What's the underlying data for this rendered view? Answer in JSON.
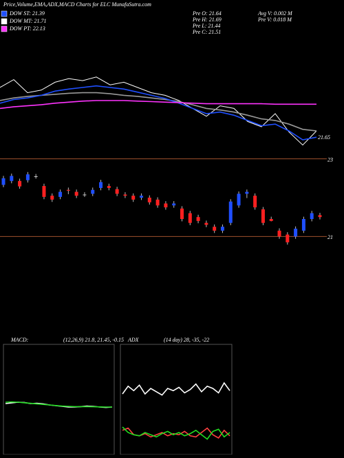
{
  "chart_data": [
    {
      "type": "line",
      "title": "Price,Volume,EMA,ADX,MACD Charts for ELC MunafaSutra.com",
      "legend": [
        {
          "label": "DOW ST: 21.39",
          "color": "#1f4fff"
        },
        {
          "label": "DOW MT: 21.71",
          "color": "#ffffff"
        },
        {
          "label": "DOW PT: 22.13",
          "color": "#ff33ff"
        }
      ],
      "info": [
        "Pre O: 21.64",
        "Pre H: 21.69",
        "Pre L: 21.44",
        "Pre C: 21.51",
        "Avg V: 0.002 M",
        "Pre V: 0.018 M"
      ],
      "annotation": "21.65",
      "ylim": [
        21.2,
        23.2
      ],
      "series": [
        {
          "color": "#ffffff",
          "values": [
            22.45,
            22.6,
            22.35,
            22.4,
            22.55,
            22.62,
            22.58,
            22.65,
            22.5,
            22.55,
            22.45,
            22.35,
            22.3,
            22.2,
            22.05,
            21.9,
            22.1,
            22.05,
            21.8,
            21.7,
            21.95,
            21.6,
            21.35,
            21.62
          ]
        },
        {
          "color": "#999999",
          "values": [
            22.2,
            22.25,
            22.28,
            22.3,
            22.32,
            22.34,
            22.35,
            22.35,
            22.33,
            22.3,
            22.28,
            22.25,
            22.22,
            22.18,
            22.12,
            22.05,
            22.02,
            21.98,
            21.92,
            21.85,
            21.82,
            21.75,
            21.65,
            21.62
          ]
        },
        {
          "color": "#1f4fff",
          "values": [
            22.15,
            22.22,
            22.25,
            22.3,
            22.38,
            22.42,
            22.45,
            22.48,
            22.45,
            22.42,
            22.36,
            22.3,
            22.24,
            22.15,
            22.05,
            21.95,
            21.98,
            21.92,
            21.82,
            21.72,
            21.75,
            21.62,
            21.45,
            21.5
          ]
        },
        {
          "color": "#ff33ff",
          "values": [
            22.05,
            22.08,
            22.1,
            22.12,
            22.15,
            22.17,
            22.19,
            22.2,
            22.2,
            22.2,
            22.19,
            22.18,
            22.17,
            22.16,
            22.15,
            22.14,
            22.14,
            22.14,
            22.14,
            22.14,
            22.13,
            22.13,
            22.13,
            22.13
          ]
        }
      ]
    },
    {
      "type": "candlestick",
      "ylim": [
        20.35,
        23.1
      ],
      "yticks": [
        21,
        23
      ],
      "grid": true,
      "up_color": "#1f4fff",
      "down_color": "#ff2020",
      "open": [
        22.33,
        22.43,
        22.43,
        22.45,
        22.55,
        22.3,
        22.05,
        22.02,
        22.2,
        22.15,
        22.08,
        22.1,
        22.25,
        22.3,
        22.22,
        22.08,
        22.05,
        22.0,
        22.0,
        21.95,
        21.85,
        21.8,
        21.72,
        21.6,
        21.5,
        21.35,
        21.25,
        21.15,
        21.35,
        21.8,
        22.1,
        22.05,
        21.7,
        21.45,
        21.15,
        21.05,
        21.0,
        21.15,
        21.45,
        21.55
      ],
      "high": [
        22.56,
        22.62,
        22.49,
        22.66,
        22.61,
        22.36,
        22.11,
        22.21,
        22.26,
        22.21,
        22.14,
        22.26,
        22.46,
        22.36,
        22.28,
        22.14,
        22.11,
        22.11,
        22.06,
        22.01,
        21.91,
        21.91,
        21.78,
        21.66,
        21.56,
        21.41,
        21.31,
        21.31,
        21.96,
        22.16,
        22.21,
        22.11,
        21.76,
        21.51,
        21.21,
        21.11,
        21.26,
        21.51,
        21.66,
        21.61
      ],
      "low": [
        22.27,
        22.37,
        22.23,
        22.39,
        22.49,
        21.96,
        21.89,
        21.96,
        22.09,
        21.99,
        22.02,
        22.04,
        22.19,
        22.19,
        22.04,
        21.99,
        21.89,
        21.94,
        21.82,
        21.74,
        21.69,
        21.74,
        21.39,
        21.29,
        21.34,
        21.24,
        21.09,
        21.09,
        21.29,
        21.74,
        21.99,
        21.69,
        21.29,
        21.39,
        20.94,
        20.79,
        20.94,
        21.09,
        21.39,
        21.44
      ],
      "close": [
        22.5,
        22.56,
        22.29,
        22.6,
        22.55,
        22.02,
        21.95,
        22.15,
        22.18,
        22.05,
        22.08,
        22.2,
        22.4,
        22.25,
        22.1,
        22.05,
        21.95,
        22.05,
        21.88,
        21.8,
        21.75,
        21.85,
        21.45,
        21.35,
        21.4,
        21.3,
        21.15,
        21.25,
        21.9,
        22.1,
        22.15,
        21.75,
        21.35,
        21.4,
        21.0,
        20.85,
        21.2,
        21.45,
        21.6,
        21.5
      ]
    },
    {
      "type": "line",
      "title": "MACD:",
      "subtitle": "(12,26,9) 21.8, 21.45, -0.15",
      "ylim": [
        18,
        26
      ],
      "series": [
        {
          "color": "#ffffff",
          "values": [
            21.7,
            21.75,
            21.8,
            21.78,
            21.7,
            21.72,
            21.68,
            21.6,
            21.55,
            21.5,
            21.45,
            21.45,
            21.48,
            21.52,
            21.5,
            21.45,
            21.42,
            21.45
          ]
        },
        {
          "color": "#22dd22",
          "values": [
            21.8,
            21.82,
            21.8,
            21.76,
            21.72,
            21.68,
            21.64,
            21.6,
            21.56,
            21.52,
            21.5,
            21.48,
            21.48,
            21.48,
            21.47,
            21.46,
            21.45,
            21.45
          ]
        }
      ]
    },
    {
      "type": "line",
      "title": "ADX",
      "subtitle": "(14 day) 28, -35, -22",
      "ylim": [
        0,
        100
      ],
      "series": [
        {
          "color": "#ffffff",
          "values": [
            55,
            62,
            58,
            63,
            55,
            60,
            57,
            54,
            60,
            58,
            61,
            56,
            59,
            64,
            57,
            62,
            60,
            56,
            65,
            58
          ]
        },
        {
          "color": "#ff4040",
          "values": [
            22,
            24,
            18,
            17,
            19,
            16,
            18,
            20,
            17,
            19,
            18,
            21,
            17,
            16,
            20,
            24,
            18,
            15,
            22,
            17
          ]
        },
        {
          "color": "#22dd22",
          "values": [
            25,
            20,
            18,
            17,
            20,
            18,
            16,
            19,
            21,
            18,
            20,
            17,
            19,
            22,
            18,
            14,
            21,
            23,
            16,
            20
          ]
        }
      ]
    }
  ]
}
